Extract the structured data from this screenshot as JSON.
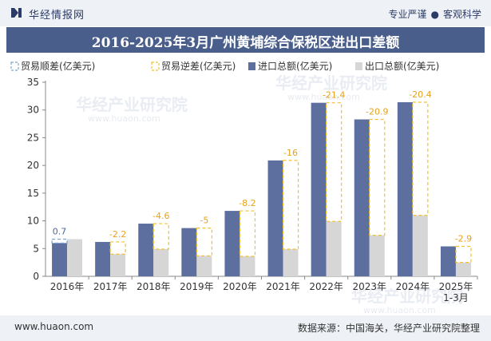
{
  "header": {
    "brand": "华经情报网",
    "slogan_left": "专业严谨",
    "slogan_sep": "●",
    "slogan_right": "客观科学"
  },
  "footer": {
    "url": "www.huaon.com",
    "source": "数据来源：中国海关，华经产业研究院整理"
  },
  "watermark": {
    "text": "华经产业研究院",
    "url": "www.huaon.com"
  },
  "colors": {
    "import": "#5c6f9e",
    "export": "#d6d6d6",
    "surplus_border": "#7ba7cf",
    "deficit_border": "#f2c12e",
    "label_pos": "#4a6a9a",
    "label_neg": "#e6a21a"
  },
  "chart_data": {
    "type": "bar",
    "title": "2016-2025年3月广州黄埔综合保税区进出口差额",
    "categories": [
      "2016年",
      "2017年",
      "2018年",
      "2019年",
      "2020年",
      "2021年",
      "2022年",
      "2023年",
      "2024年",
      "2025年\n1-3月"
    ],
    "series": [
      {
        "name": "进口总额(亿美元)",
        "values": [
          6.0,
          6.2,
          9.5,
          8.7,
          11.8,
          20.9,
          31.3,
          28.3,
          31.4,
          5.4
        ]
      },
      {
        "name": "出口总额(亿美元)",
        "values": [
          6.7,
          4.0,
          4.9,
          3.7,
          3.6,
          4.9,
          9.9,
          7.4,
          11.0,
          2.5
        ]
      }
    ],
    "balance": {
      "values": [
        0.7,
        -2.2,
        -4.6,
        -5,
        -8.2,
        -16,
        -21.4,
        -20.9,
        -20.4,
        -2.9
      ],
      "labels": [
        "0.7",
        "-2.2",
        "-4.6",
        "-5",
        "-8.2",
        "-16",
        "-21.4",
        "-20.9",
        "-20.4",
        "-2.9"
      ]
    },
    "legend": [
      "贸易顺差(亿美元)",
      "贸易逆差(亿美元)",
      "进口总额(亿美元)",
      "出口总额(亿美元)"
    ],
    "legend_position": "top-left",
    "ylim": [
      0,
      35
    ],
    "yticks": [
      0,
      5,
      10,
      15,
      20,
      25,
      30,
      35
    ],
    "xlabel": "",
    "ylabel": "",
    "grid": false
  }
}
